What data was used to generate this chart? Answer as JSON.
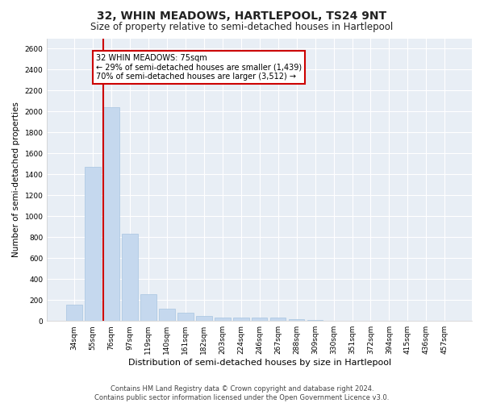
{
  "title": "32, WHIN MEADOWS, HARTLEPOOL, TS24 9NT",
  "subtitle": "Size of property relative to semi-detached houses in Hartlepool",
  "xlabel": "Distribution of semi-detached houses by size in Hartlepool",
  "ylabel": "Number of semi-detached properties",
  "categories": [
    "34sqm",
    "55sqm",
    "76sqm",
    "97sqm",
    "119sqm",
    "140sqm",
    "161sqm",
    "182sqm",
    "203sqm",
    "224sqm",
    "246sqm",
    "267sqm",
    "288sqm",
    "309sqm",
    "330sqm",
    "351sqm",
    "372sqm",
    "394sqm",
    "415sqm",
    "436sqm",
    "457sqm"
  ],
  "values": [
    155,
    1470,
    2040,
    835,
    255,
    115,
    75,
    50,
    35,
    35,
    35,
    30,
    20,
    10,
    5,
    3,
    2,
    1,
    1,
    0,
    0
  ],
  "bar_color": "#c5d8ee",
  "bar_edge_color": "#a8c4e0",
  "red_line_index": 2,
  "annotation_line1": "32 WHIN MEADOWS: 75sqm",
  "annotation_line2": "← 29% of semi-detached houses are smaller (1,439)",
  "annotation_line3": "70% of semi-detached houses are larger (3,512) →",
  "annotation_box_color": "#ffffff",
  "annotation_box_edge_color": "#cc0000",
  "ylim": [
    0,
    2700
  ],
  "yticks": [
    0,
    200,
    400,
    600,
    800,
    1000,
    1200,
    1400,
    1600,
    1800,
    2000,
    2200,
    2400,
    2600
  ],
  "footnote_line1": "Contains HM Land Registry data © Crown copyright and database right 2024.",
  "footnote_line2": "Contains public sector information licensed under the Open Government Licence v3.0.",
  "fig_bg_color": "#ffffff",
  "plot_bg_color": "#e8eef5",
  "grid_color": "#ffffff",
  "title_fontsize": 10,
  "subtitle_fontsize": 8.5,
  "tick_fontsize": 6.5,
  "ylabel_fontsize": 7.5,
  "xlabel_fontsize": 8,
  "annotation_fontsize": 7,
  "footnote_fontsize": 6
}
